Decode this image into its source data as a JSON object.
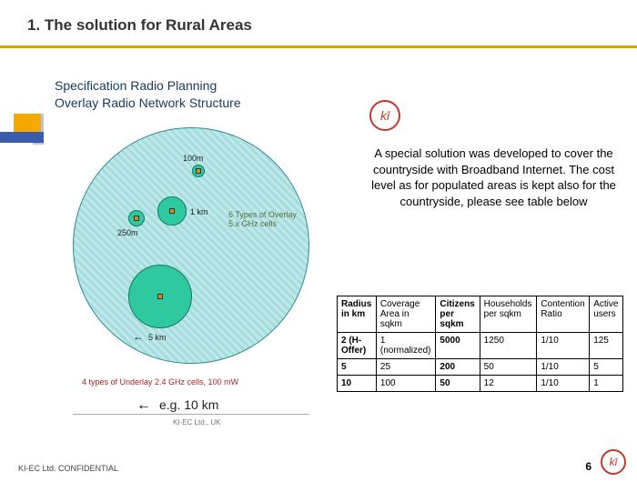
{
  "title": "1. The solution for Rural Areas",
  "diagram": {
    "line1": "Specification Radio Planning",
    "line2": "Overlay Radio Network Structure",
    "big_radius_label": "e.g. 10 km",
    "footer_label": "KI-EC Ltd., UK",
    "overlay_note": "6 Types of Overlay 5.x GHz cells",
    "underlay_note": "4 types of Underlay 2.4 GHz cells, 100 mW",
    "cells": {
      "c5": {
        "label": "5 km"
      },
      "c1": {
        "label": "1 km"
      },
      "c250": {
        "label": "250m"
      },
      "c100": {
        "label": "100m"
      }
    },
    "style": {
      "hatch_fg": "#bfe8ea",
      "hatch_bg": "#a6dcde",
      "cell_fill": "#2fc9a0",
      "cell_border": "#0f7a5f"
    }
  },
  "logo_text": "kī",
  "body_text": "A special solution was developed to cover the countryside with Broadband Internet. The cost level as for populated areas is\nkept also for the countryside, please see table below",
  "table": {
    "columns": [
      {
        "label": "Radius in km",
        "bold": true
      },
      {
        "label": "Coverage Area in sqkm",
        "bold": false
      },
      {
        "label": "Citizens per sqkm",
        "bold": true
      },
      {
        "label": "Households per sqkm",
        "bold": false
      },
      {
        "label": "Contention Ratio",
        "bold": false
      },
      {
        "label": "Active users",
        "bold": false
      }
    ],
    "rows": [
      [
        {
          "v": "2 (H-Offer)",
          "b": true
        },
        {
          "v": "1 (normalized)",
          "b": false
        },
        {
          "v": "5000",
          "b": true
        },
        {
          "v": "1250",
          "b": false
        },
        {
          "v": "1/10",
          "b": false
        },
        {
          "v": "125",
          "b": false
        }
      ],
      [
        {
          "v": "5",
          "b": true
        },
        {
          "v": "25",
          "b": false
        },
        {
          "v": "200",
          "b": true
        },
        {
          "v": "50",
          "b": false
        },
        {
          "v": "1/10",
          "b": false
        },
        {
          "v": "5",
          "b": false
        }
      ],
      [
        {
          "v": "10",
          "b": true
        },
        {
          "v": "100",
          "b": false
        },
        {
          "v": "50",
          "b": true
        },
        {
          "v": "12",
          "b": false
        },
        {
          "v": "1/10",
          "b": false
        },
        {
          "v": "1",
          "b": false
        }
      ]
    ]
  },
  "footer": {
    "confidential": "KI-EC Ltd. CONFIDENTIAL",
    "page": "6"
  }
}
